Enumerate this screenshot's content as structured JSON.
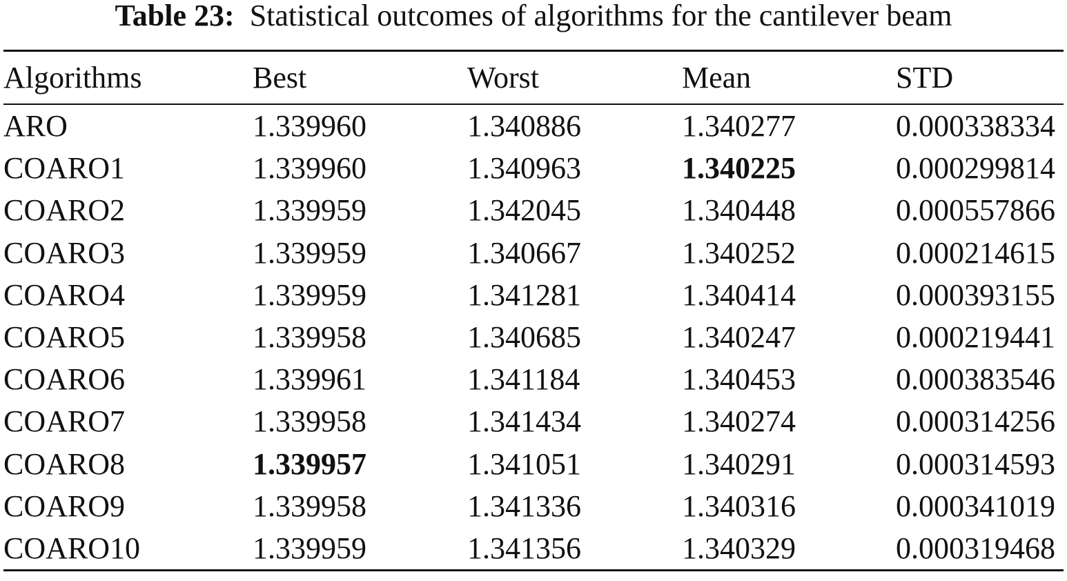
{
  "caption": {
    "label": "Table 23:",
    "text": "Statistical outcomes of algorithms for the cantilever beam"
  },
  "table": {
    "columns": [
      "Algorithms",
      "Best",
      "Worst",
      "Mean",
      "STD"
    ],
    "rows": [
      [
        "ARO",
        "1.339960",
        "1.340886",
        "1.340277",
        "0.000338334"
      ],
      [
        "COARO1",
        "1.339960",
        "1.340963",
        "1.340225",
        "0.000299814"
      ],
      [
        "COARO2",
        "1.339959",
        "1.342045",
        "1.340448",
        "0.000557866"
      ],
      [
        "COARO3",
        "1.339959",
        "1.340667",
        "1.340252",
        "0.000214615"
      ],
      [
        "COARO4",
        "1.339959",
        "1.341281",
        "1.340414",
        "0.000393155"
      ],
      [
        "COARO5",
        "1.339958",
        "1.340685",
        "1.340247",
        "0.000219441"
      ],
      [
        "COARO6",
        "1.339961",
        "1.341184",
        "1.340453",
        "0.000383546"
      ],
      [
        "COARO7",
        "1.339958",
        "1.341434",
        "1.340274",
        "0.000314256"
      ],
      [
        "COARO8",
        "1.339957",
        "1.341051",
        "1.340291",
        "0.000314593"
      ],
      [
        "COARO9",
        "1.339958",
        "1.341336",
        "1.340316",
        "0.000341019"
      ],
      [
        "COARO10",
        "1.339959",
        "1.341356",
        "1.340329",
        "0.000319468"
      ]
    ],
    "bold_cells": [
      [
        1,
        3
      ],
      [
        8,
        1
      ]
    ]
  }
}
